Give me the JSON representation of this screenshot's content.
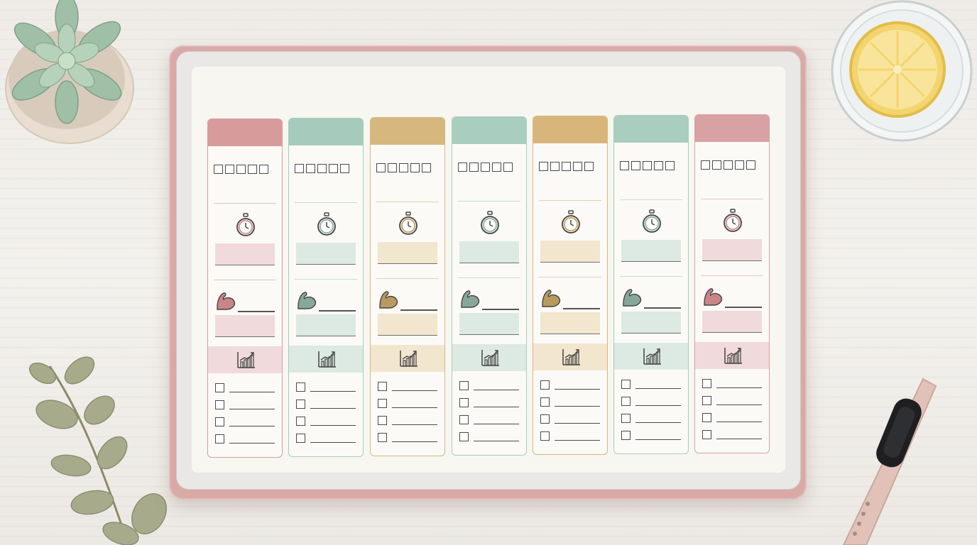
{
  "scene": {
    "background_color": "#efece8",
    "tablet_case_color": "#d9a9a6",
    "screen_color": "#f8f6f1"
  },
  "planner": {
    "columns": [
      {
        "accent": "#d79b9c",
        "tint": "#f1dadb",
        "icon_color": "#c98587",
        "line": "#e5c2c3"
      },
      {
        "accent": "#a6cbbd",
        "tint": "#dde9e3",
        "icon_color": "#86a89a",
        "line": "#c9ddd4"
      },
      {
        "accent": "#d6b77d",
        "tint": "#f2e6cf",
        "icon_color": "#b99a5e",
        "line": "#e5d2ad"
      },
      {
        "accent": "#a9cdbf",
        "tint": "#dde9e3",
        "icon_color": "#86a89a",
        "line": "#c9ddd4"
      },
      {
        "accent": "#d8b67b",
        "tint": "#f2e6cf",
        "icon_color": "#b99a5e",
        "line": "#e5d2ad"
      },
      {
        "accent": "#a9cdbf",
        "tint": "#dde9e3",
        "icon_color": "#86a89a",
        "line": "#c9ddd4"
      },
      {
        "accent": "#d8a1a3",
        "tint": "#f1dadb",
        "icon_color": "#c98587",
        "line": "#e5c2c3"
      }
    ],
    "habit_boxes_per_column": 5,
    "checklist_rows_per_column": 4
  },
  "props": [
    "succulent-pot",
    "glass-of-lemon-water",
    "eucalyptus-sprig",
    "fitness-band"
  ]
}
